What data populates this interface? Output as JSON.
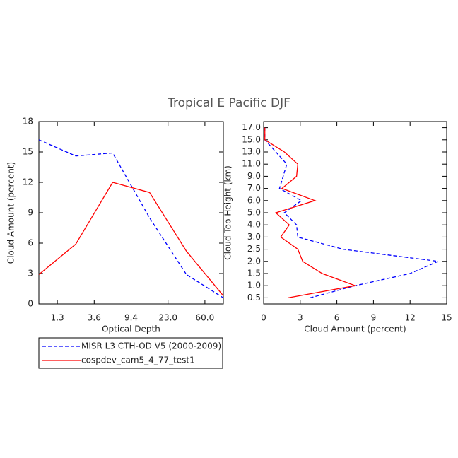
{
  "title": "Tropical E Pacific DJF",
  "chart_data": [
    {
      "type": "line",
      "xlabel": "Optical Depth",
      "ylabel": "Cloud Amount (percent)",
      "x": [
        0,
        1,
        2,
        3,
        4,
        5
      ],
      "xlim": [
        0,
        5
      ],
      "xticks": [
        {
          "value": 0.5,
          "label": "1.3"
        },
        {
          "value": 1.5,
          "label": "3.6"
        },
        {
          "value": 2.5,
          "label": "9.4"
        },
        {
          "value": 3.5,
          "label": "23.0"
        },
        {
          "value": 4.5,
          "label": "60.0"
        }
      ],
      "ylim": [
        0,
        18
      ],
      "yticks": [
        0,
        3,
        6,
        9,
        12,
        15,
        18
      ],
      "series": [
        {
          "name": "MISR L3 CTH-OD V5 (2000-2009)",
          "color": "#0000ff",
          "dash": true,
          "values": [
            16.2,
            14.6,
            14.9,
            8.5,
            2.9,
            0.6
          ]
        },
        {
          "name": "cospdev_cam5_4_77_test1",
          "color": "#ff0000",
          "dash": false,
          "values": [
            2.9,
            5.9,
            12.0,
            11.0,
            5.2,
            0.8
          ]
        }
      ]
    },
    {
      "type": "hline",
      "xlabel": "Cloud Amount (percent)",
      "ylabel": "Cloud Top Height (km)",
      "categories": [
        "0.5",
        "1.0",
        "1.5",
        "2.0",
        "2.5",
        "3.0",
        "4.0",
        "5.0",
        "6.0",
        "7.0",
        "9.0",
        "11.0",
        "13.0",
        "15.0",
        "17.0"
      ],
      "xlim": [
        0,
        15
      ],
      "xticks": [
        0,
        3,
        6,
        9,
        12,
        15
      ],
      "series": [
        {
          "color": "#0000ff",
          "dash": true,
          "values": [
            3.8,
            7.5,
            12.0,
            14.3,
            6.5,
            2.8,
            2.7,
            1.7,
            3.1,
            1.3,
            1.6,
            1.9,
            1.0,
            0.1,
            0.1
          ]
        },
        {
          "color": "#ff0000",
          "dash": false,
          "values": [
            2.0,
            7.5,
            4.8,
            3.2,
            2.8,
            1.4,
            2.1,
            1.0,
            4.2,
            1.5,
            2.7,
            2.8,
            1.7,
            0.1,
            0.1
          ]
        }
      ]
    }
  ]
}
